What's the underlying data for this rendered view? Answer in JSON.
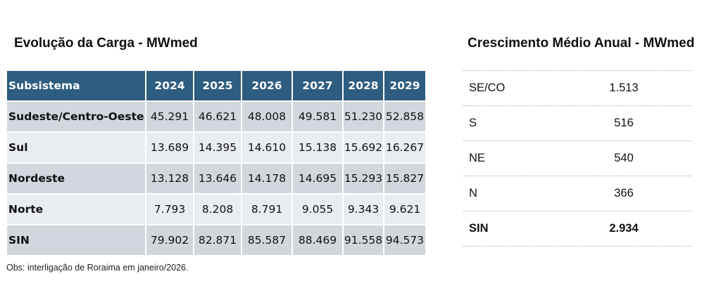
{
  "load_section": {
    "title": "Evolução da Carga - MWmed",
    "header": [
      "Subsistema",
      "2024",
      "2025",
      "2026",
      "2027",
      "2028",
      "2029"
    ],
    "rows": [
      {
        "name": "Sudeste/Centro-Oeste",
        "values": [
          "45.291",
          "46.621",
          "48.008",
          "49.581",
          "51.230",
          "52.858"
        ]
      },
      {
        "name": "Sul",
        "values": [
          "13.689",
          "14.395",
          "14.610",
          "15.138",
          "15.692",
          "16.267"
        ]
      },
      {
        "name": "Nordeste",
        "values": [
          "13.128",
          "13.646",
          "14.178",
          "14.695",
          "15.293",
          "15.827"
        ]
      },
      {
        "name": "Norte",
        "values": [
          "7.793",
          "8.208",
          "8.791",
          "9.055",
          "9.343",
          "9.621"
        ]
      },
      {
        "name": "SIN",
        "values": [
          "79.902",
          "82.871",
          "85.587",
          "88.469",
          "91.558",
          "94.573"
        ]
      }
    ],
    "note": "Obs: interligação de Roraima em janeiro/2026.",
    "header_color": "#2d5d80",
    "row_colors": [
      "#d2d7de",
      "#e9ecf0"
    ]
  },
  "growth_section": {
    "title": "Crescimento Médio Anual - MWmed",
    "rows": [
      {
        "name": "SE/CO",
        "value": "1.513"
      },
      {
        "name": "S",
        "value": "516"
      },
      {
        "name": "NE",
        "value": "540"
      },
      {
        "name": "N",
        "value": "366"
      },
      {
        "name": "SIN",
        "value": "2.934"
      }
    ]
  }
}
